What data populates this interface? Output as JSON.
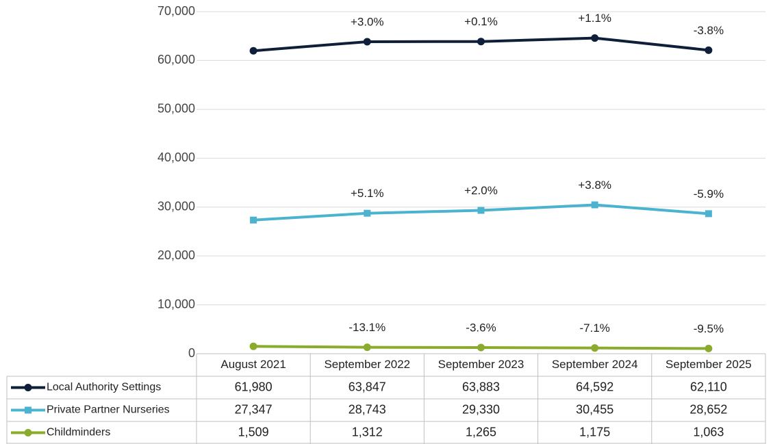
{
  "chart_data": {
    "type": "line",
    "categories": [
      "August 2021",
      "September 2022",
      "September 2023",
      "September 2024",
      "September 2025"
    ],
    "series": [
      {
        "name": "Local Authority Settings",
        "color": "#0f1f3a",
        "marker": "circle",
        "values": [
          61980,
          63847,
          63883,
          64592,
          62110
        ],
        "value_labels": [
          "61,980",
          "63,847",
          "63,883",
          "64,592",
          "62,110"
        ],
        "change_labels": [
          null,
          "+3.0%",
          "+0.1%",
          "+1.1%",
          "-3.8%"
        ]
      },
      {
        "name": "Private Partner Nurseries",
        "color": "#4bb3d0",
        "marker": "square",
        "values": [
          27347,
          28743,
          29330,
          30455,
          28652
        ],
        "value_labels": [
          "27,347",
          "28,743",
          "29,330",
          "30,455",
          "28,652"
        ],
        "change_labels": [
          null,
          "+5.1%",
          "+2.0%",
          "+3.8%",
          "-5.9%"
        ]
      },
      {
        "name": "Childminders",
        "color": "#8aab2c",
        "marker": "circle",
        "values": [
          1509,
          1312,
          1265,
          1175,
          1063
        ],
        "value_labels": [
          "1,509",
          "1,312",
          "1,265",
          "1,175",
          "1,063"
        ],
        "change_labels": [
          null,
          "-13.1%",
          "-3.6%",
          "-7.1%",
          "-9.5%"
        ]
      }
    ],
    "ylim": [
      0,
      70000
    ],
    "yticks": [
      0,
      {
        "value": 10000,
        "label": "10,000"
      },
      {
        "value": 20000,
        "label": "20,000"
      },
      {
        "value": 30000,
        "label": "30,000"
      },
      {
        "value": 40000,
        "label": "40,000"
      },
      {
        "value": 50000,
        "label": "50,000"
      },
      {
        "value": 60000,
        "label": "60,000"
      },
      {
        "value": 70000,
        "label": "70,000"
      }
    ],
    "grid": true
  }
}
